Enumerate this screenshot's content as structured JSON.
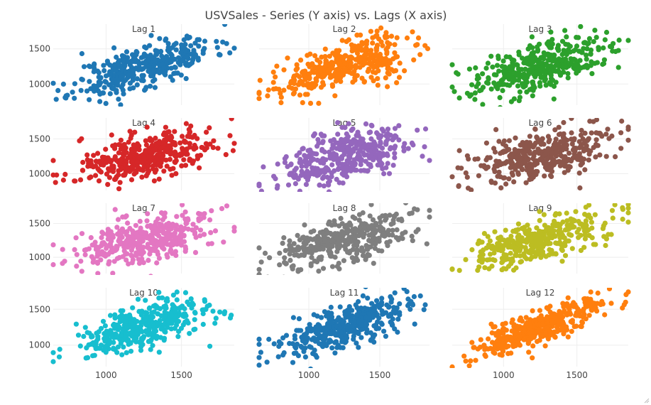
{
  "chart_data": {
    "type": "scatter",
    "title": "USVSales - Series (Y axis) vs. Lags (X axis)",
    "xlim": [
      650,
      1850
    ],
    "y_ticks": [
      1000,
      1500
    ],
    "x_ticks": [
      1000,
      1500
    ],
    "grid": true,
    "legend": "none",
    "panels": [
      {
        "label": "Lag 1",
        "color": "#1f77b4",
        "ylim": [
          700,
          1850
        ],
        "slope": 0.62,
        "noise": 150,
        "seed": 11
      },
      {
        "label": "Lag 2",
        "color": "#ff7f0e",
        "ylim": [
          700,
          1850
        ],
        "slope": 0.55,
        "noise": 160,
        "seed": 22
      },
      {
        "label": "Lag 3",
        "color": "#2ca02c",
        "ylim": [
          700,
          1850
        ],
        "slope": 0.5,
        "noise": 165,
        "seed": 33
      },
      {
        "label": "Lag 4",
        "color": "#d62728",
        "ylim": [
          760,
          1800
        ],
        "slope": 0.45,
        "noise": 170,
        "seed": 44
      },
      {
        "label": "Lag 5",
        "color": "#9467bd",
        "ylim": [
          760,
          1800
        ],
        "slope": 0.42,
        "noise": 175,
        "seed": 55
      },
      {
        "label": "Lag 6",
        "color": "#8c564b",
        "ylim": [
          760,
          1800
        ],
        "slope": 0.4,
        "noise": 175,
        "seed": 66
      },
      {
        "label": "Lag 7",
        "color": "#e377c2",
        "ylim": [
          760,
          1800
        ],
        "slope": 0.42,
        "noise": 170,
        "seed": 77
      },
      {
        "label": "Lag 8",
        "color": "#7f7f7f",
        "ylim": [
          760,
          1800
        ],
        "slope": 0.45,
        "noise": 165,
        "seed": 88
      },
      {
        "label": "Lag 9",
        "color": "#bcbd22",
        "ylim": [
          760,
          1800
        ],
        "slope": 0.5,
        "noise": 160,
        "seed": 99
      },
      {
        "label": "Lag 10",
        "color": "#17becf",
        "ylim": [
          700,
          1800
        ],
        "slope": 0.55,
        "noise": 150,
        "seed": 111
      },
      {
        "label": "Lag 11",
        "color": "#1f77b4",
        "ylim": [
          700,
          1800
        ],
        "slope": 0.6,
        "noise": 140,
        "seed": 122
      },
      {
        "label": "Lag 12",
        "color": "#ff7f0e",
        "ylim": [
          700,
          1800
        ],
        "slope": 0.72,
        "noise": 110,
        "seed": 133
      }
    ]
  }
}
